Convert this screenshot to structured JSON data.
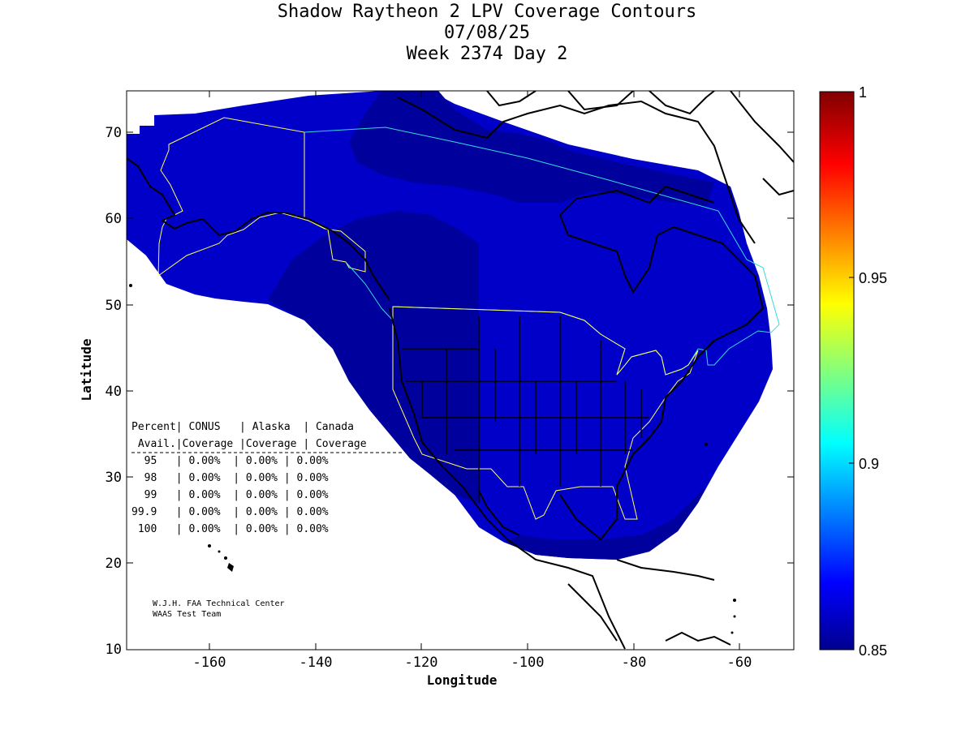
{
  "title": {
    "line1": "Shadow Raytheon 2 LPV Coverage Contours",
    "line2": "07/08/25",
    "line3": "Week 2374 Day 2"
  },
  "axes": {
    "xlabel": "Longitude",
    "ylabel": "Latitude",
    "x_ticks": [
      "-160",
      "-140",
      "-120",
      "-100",
      "-80",
      "-60"
    ],
    "y_ticks": [
      "10",
      "20",
      "30",
      "40",
      "50",
      "60",
      "70"
    ]
  },
  "colorbar": {
    "ticks": [
      "1",
      "0.95",
      "0.9",
      "0.85"
    ],
    "colors": [
      "#00008f",
      "#0000ff",
      "#00ffff",
      "#ffff00",
      "#ff0000",
      "#800000"
    ]
  },
  "table": {
    "header1": "Percent| CONUS   | Alaska  | Canada",
    "header2": " Avail.|Coverage |Coverage | Coverage",
    "rows": [
      "  95   | 0.00%  | 0.00% | 0.00%",
      "  98   | 0.00%  | 0.00% | 0.00%",
      "  99   | 0.00%  | 0.00% | 0.00%",
      "99.9   | 0.00%  | 0.00% | 0.00%",
      " 100   | 0.00%  | 0.00% | 0.00%"
    ]
  },
  "credit": {
    "line1": "W.J.H. FAA Technical Center",
    "line2": "WAAS Test Team"
  },
  "colors": {
    "coverage_dark": "#00009c",
    "coverage_mid": "#0000c8",
    "service_area_yellow": "#ffff66",
    "service_area_cyan": "#33dddd"
  }
}
